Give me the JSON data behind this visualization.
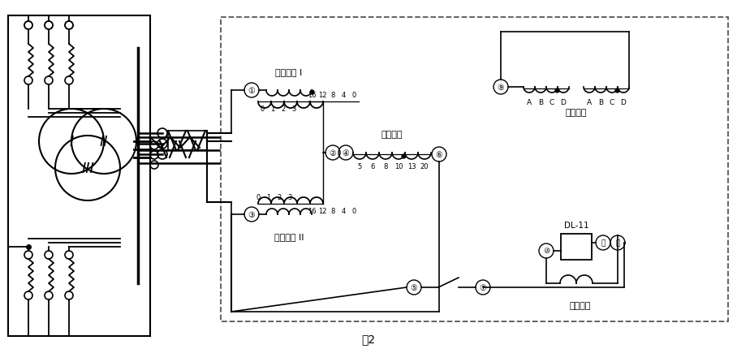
{
  "bg_color": "#ffffff",
  "line_color": "#000000",
  "fig_width": 9.08,
  "fig_height": 4.31,
  "labels": {
    "ping_heng_I": "平衡绕组 I",
    "ping_heng_II": "平衡绕组 II",
    "gong_zuo": "工作绕组",
    "duan_lu": "短路绕组",
    "er_ci": "二次绕组",
    "dl11": "DL-11",
    "fig_label": "图2"
  }
}
